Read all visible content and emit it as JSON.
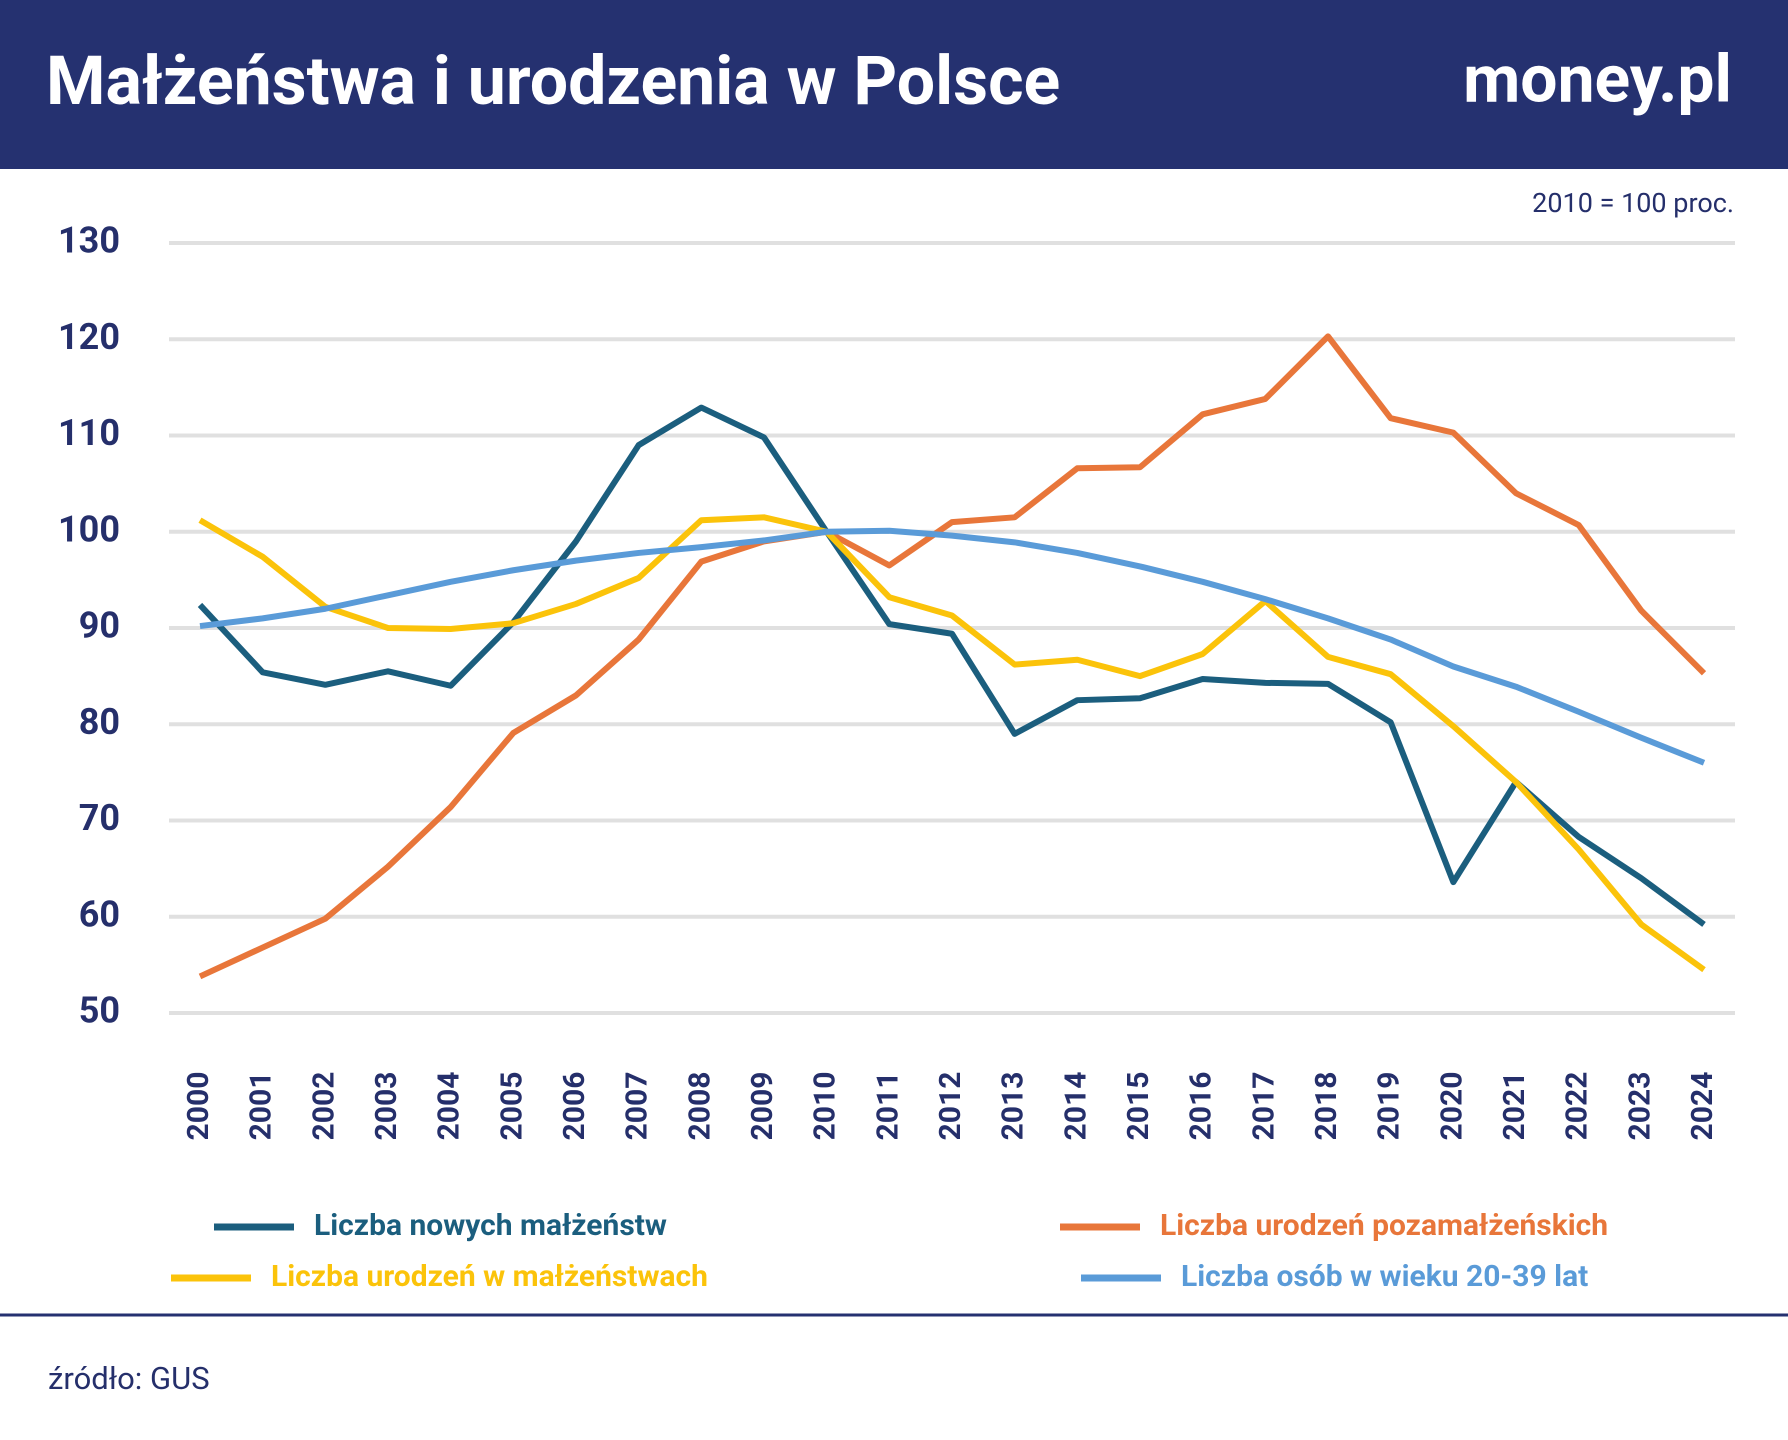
{
  "brand": "money.pl",
  "chart_data": {
    "type": "line",
    "title": "Małżeństwa i urodzenia w Polsce",
    "subtitle": "2010 = 100 proc.",
    "source": "źródło: GUS",
    "categories": [
      "2000",
      "2001",
      "2002",
      "2003",
      "2004",
      "2005",
      "2006",
      "2007",
      "2008",
      "2009",
      "2010",
      "2011",
      "2012",
      "2013",
      "2014",
      "2015",
      "2016",
      "2017",
      "2018",
      "2019",
      "2020",
      "2021",
      "2022",
      "2023",
      "2024"
    ],
    "series": [
      {
        "name": "Liczba nowych małżeństw",
        "color": "#1b5e7e",
        "values": [
          92.4,
          85.4,
          84.1,
          85.5,
          84,
          90.6,
          99,
          109,
          112.9,
          109.8,
          100,
          90.4,
          89.4,
          79,
          82.5,
          82.7,
          84.7,
          84.3,
          84.2,
          80.2,
          63.6,
          74,
          68.3,
          64,
          59.2
        ]
      },
      {
        "name": "Liczba urodzeń pozamałżeńskich",
        "color": "#e8763a",
        "values": [
          53.8,
          56.8,
          59.8,
          65.2,
          71.4,
          79.1,
          83,
          88.8,
          96.9,
          99,
          100,
          96.5,
          101,
          101.5,
          106.6,
          106.7,
          112.2,
          113.8,
          120.3,
          111.8,
          110.3,
          104,
          100.7,
          91.8,
          85.3
        ]
      },
      {
        "name": "Liczba urodzeń w małżeństwach",
        "color": "#fbc30a",
        "values": [
          101.2,
          97.4,
          92.2,
          90,
          89.9,
          90.5,
          92.5,
          95.2,
          101.2,
          101.5,
          100,
          93.2,
          91.3,
          86.2,
          86.7,
          85,
          87.3,
          92.8,
          87,
          85.2,
          79.8,
          74,
          67,
          59.2,
          54.5
        ]
      },
      {
        "name": "Liczba osób w wieku 20-39 lat",
        "color": "#5a9bd8",
        "values": [
          90.2,
          91,
          92,
          93.4,
          94.8,
          96,
          97,
          97.8,
          98.4,
          99.1,
          100,
          100.1,
          99.6,
          98.9,
          97.8,
          96.4,
          94.8,
          93,
          91,
          88.8,
          86,
          83.9,
          81.3,
          78.6,
          76
        ]
      }
    ],
    "ylim": [
      50,
      130
    ],
    "yticks": [
      50,
      60,
      70,
      80,
      90,
      100,
      110,
      120,
      130
    ],
    "grid": true
  }
}
